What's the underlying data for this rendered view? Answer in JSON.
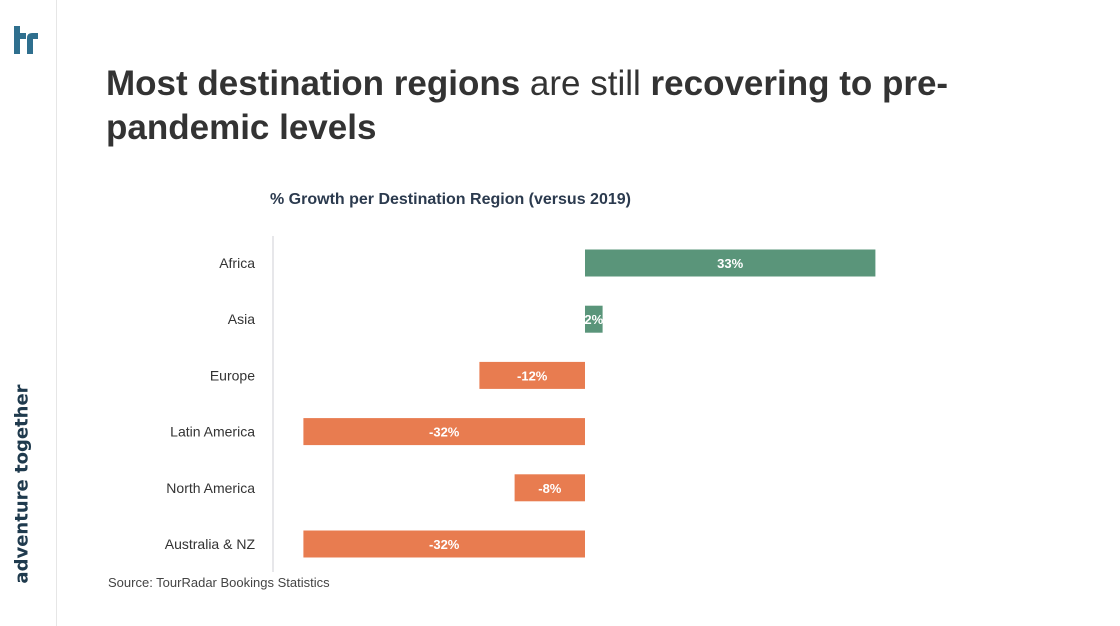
{
  "page": {
    "title_segments": [
      {
        "text": "Most destination regions",
        "bold": true
      },
      {
        "text": " are still ",
        "bold": false
      },
      {
        "text": "recovering to pre-pandemic levels",
        "bold": true
      }
    ],
    "brand_tagline": "adventure together",
    "logo_icon": "tourradar-tr-logo-icon",
    "source": "Source: TourRadar Bookings Statistics"
  },
  "chart_data": {
    "type": "bar",
    "orientation": "horizontal",
    "title": "% Growth per Destination Region (versus 2019)",
    "categories": [
      "Africa",
      "Asia",
      "Europe",
      "Latin America",
      "North America",
      "Australia & NZ"
    ],
    "values": [
      33,
      2,
      -12,
      -32,
      -8,
      -32
    ],
    "labels": [
      "33%",
      "2%",
      "-12%",
      "-32%",
      "-8%",
      "-32%"
    ],
    "xlim": [
      -35,
      35
    ],
    "grid": false,
    "legend": "none",
    "colors": {
      "positive": "#5a957a",
      "negative": "#e87c50",
      "label_text": "#ffffff",
      "axis": "#cfcfd6"
    }
  }
}
